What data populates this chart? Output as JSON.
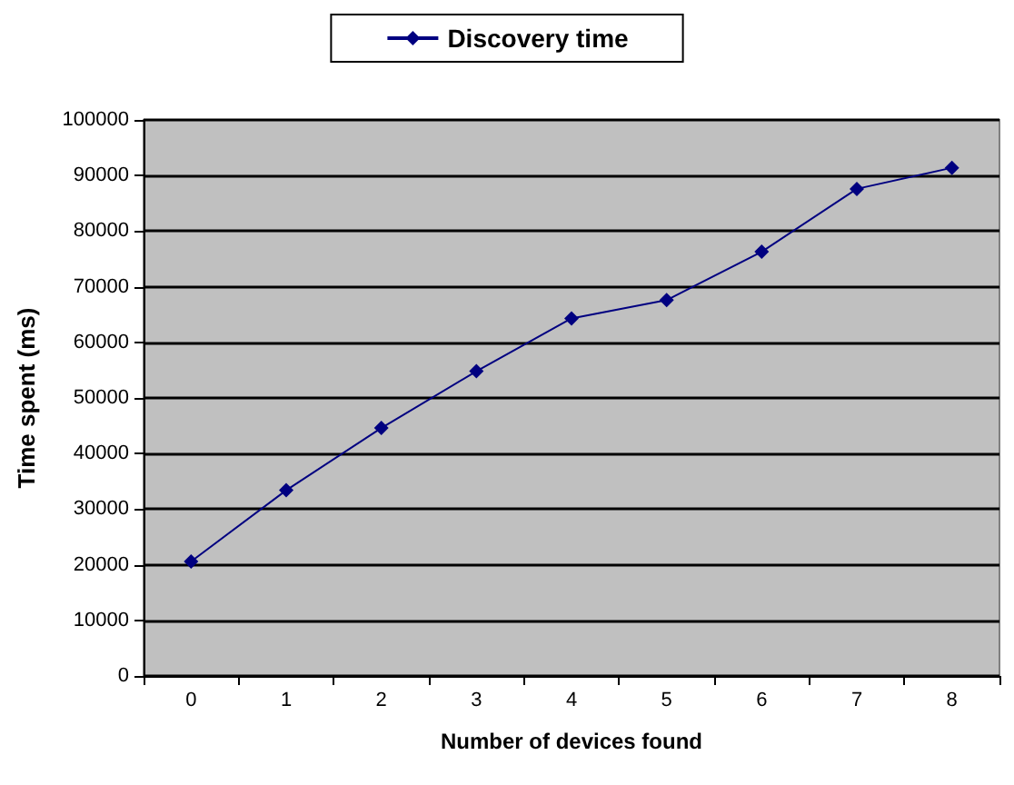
{
  "chart_data": {
    "type": "line",
    "xlabel": "Number of devices found",
    "ylabel": "Time spent (ms)",
    "categories": [
      "0",
      "1",
      "2",
      "3",
      "4",
      "5",
      "6",
      "7",
      "8"
    ],
    "series": [
      {
        "name": "Discovery time",
        "color": "#000080",
        "values": [
          20600,
          33400,
          44600,
          54800,
          64300,
          67600,
          76300,
          87600,
          91400
        ]
      }
    ],
    "ylim": [
      0,
      100000
    ],
    "yticks": [
      0,
      10000,
      20000,
      30000,
      40000,
      50000,
      60000,
      70000,
      80000,
      90000,
      100000
    ],
    "grid": "y",
    "legend": "top",
    "marker": "diamond",
    "line_style": "solid"
  }
}
